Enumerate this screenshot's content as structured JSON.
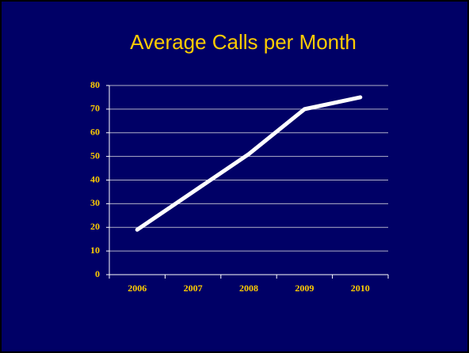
{
  "chart_data": {
    "type": "line",
    "title": "Average Calls per Month",
    "categories": [
      "2006",
      "2007",
      "2008",
      "2009",
      "2010"
    ],
    "values": [
      19,
      35,
      51,
      70,
      75
    ],
    "color": "#ffffff",
    "ylim": [
      0,
      80
    ],
    "yticks": [
      0,
      10,
      20,
      30,
      40,
      50,
      60,
      70,
      80
    ],
    "grid": true
  }
}
